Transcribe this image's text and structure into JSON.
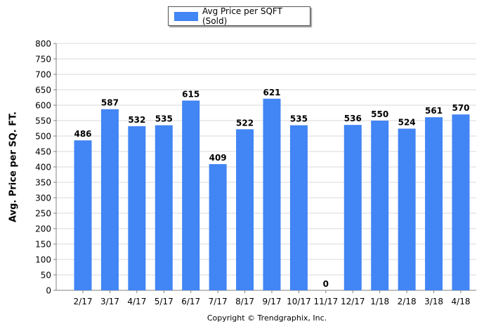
{
  "legend": {
    "label": "Avg Price per SQFT (Sold)"
  },
  "copyright": "Copyright © Trendgraphix, Inc.",
  "colors": {
    "bar": "#4285f4",
    "grid": "#d9d9d9",
    "axis": "#808080"
  },
  "chart_data": {
    "type": "bar",
    "title": "",
    "xlabel": "",
    "ylabel": "Avg. Price per SQ. FT.",
    "ylim": [
      0,
      800
    ],
    "yticks": [
      0,
      50,
      100,
      150,
      200,
      250,
      300,
      350,
      400,
      450,
      500,
      550,
      600,
      650,
      700,
      750,
      800
    ],
    "grid": true,
    "legend_position": "top-center",
    "categories": [
      "2/17",
      "3/17",
      "4/17",
      "5/17",
      "6/17",
      "7/17",
      "8/17",
      "9/17",
      "10/17",
      "11/17",
      "12/17",
      "1/18",
      "2/18",
      "3/18",
      "4/18"
    ],
    "series": [
      {
        "name": "Avg Price per SQFT (Sold)",
        "values": [
          486,
          587,
          532,
          535,
          615,
          409,
          522,
          621,
          535,
          0,
          536,
          550,
          524,
          561,
          570
        ]
      }
    ]
  }
}
